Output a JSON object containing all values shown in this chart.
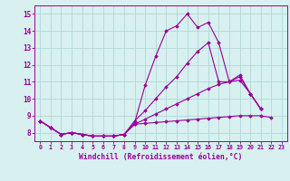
{
  "x": [
    0,
    1,
    2,
    3,
    4,
    5,
    6,
    7,
    8,
    9,
    10,
    11,
    12,
    13,
    14,
    15,
    16,
    17,
    18,
    19,
    20,
    21,
    22,
    23
  ],
  "line1": [
    8.7,
    8.3,
    7.9,
    8.0,
    7.9,
    7.8,
    7.8,
    7.8,
    7.9,
    8.6,
    10.8,
    12.5,
    14.0,
    14.3,
    15.0,
    14.2,
    14.5,
    13.3,
    11.0,
    11.4,
    10.3,
    9.4,
    null,
    null
  ],
  "line2": [
    8.7,
    8.3,
    7.9,
    8.0,
    7.9,
    7.8,
    7.8,
    7.8,
    7.9,
    8.7,
    9.3,
    10.0,
    10.7,
    11.3,
    12.1,
    12.8,
    13.3,
    11.0,
    11.0,
    11.3,
    10.3,
    9.4,
    null,
    null
  ],
  "line3": [
    8.7,
    8.3,
    7.9,
    8.0,
    7.9,
    7.8,
    7.8,
    7.8,
    7.9,
    8.5,
    8.8,
    9.1,
    9.4,
    9.7,
    10.0,
    10.3,
    10.6,
    10.85,
    11.0,
    11.1,
    10.3,
    9.4,
    null,
    null
  ],
  "line4": [
    8.7,
    8.3,
    7.9,
    8.0,
    7.9,
    7.8,
    7.8,
    7.8,
    7.9,
    8.5,
    8.55,
    8.6,
    8.65,
    8.7,
    8.75,
    8.8,
    8.85,
    8.9,
    8.95,
    9.0,
    9.0,
    9.0,
    8.9,
    null
  ],
  "line_color": "#990099",
  "bg_color": "#d8f0f0",
  "grid_color": "#b0d8d8",
  "xlabel": "Windchill (Refroidissement éolien,°C)",
  "ylim": [
    7.5,
    15.5
  ],
  "xlim": [
    -0.5,
    23.5
  ],
  "yticks": [
    8,
    9,
    10,
    11,
    12,
    13,
    14,
    15
  ],
  "xticks": [
    0,
    1,
    2,
    3,
    4,
    5,
    6,
    7,
    8,
    9,
    10,
    11,
    12,
    13,
    14,
    15,
    16,
    17,
    18,
    19,
    20,
    21,
    22,
    23
  ]
}
